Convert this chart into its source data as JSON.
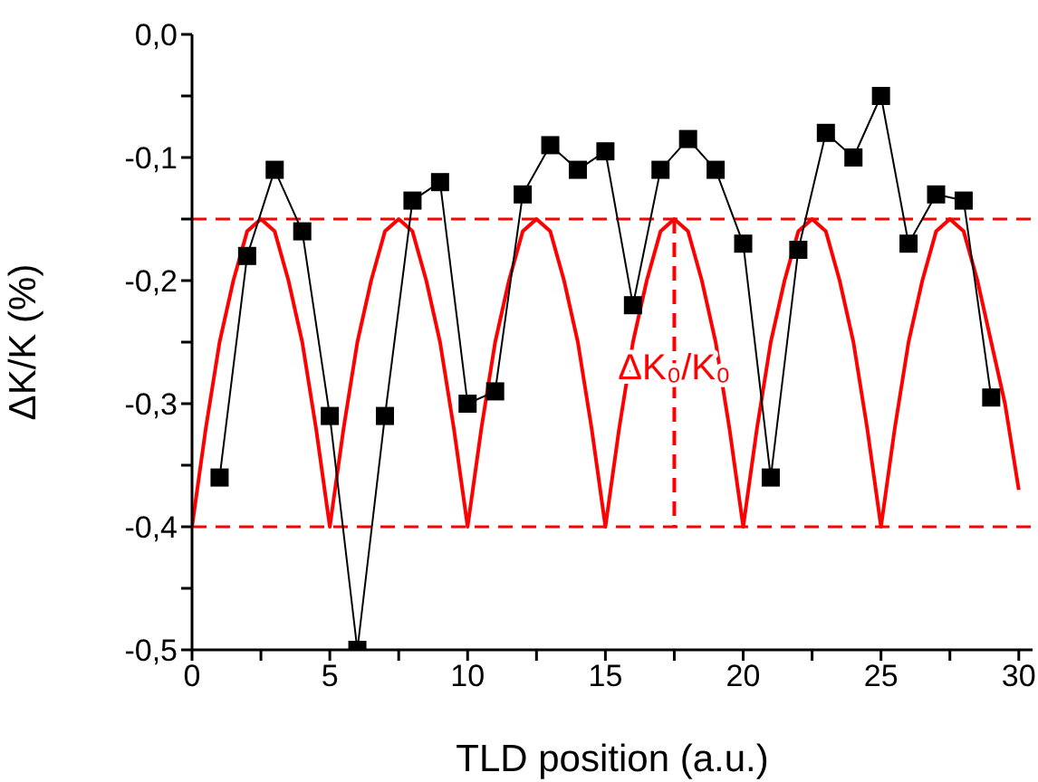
{
  "chart_data": {
    "type": "line",
    "xlabel": "TLD position (a.u.)",
    "ylabel": "ΔK/K (%)",
    "xlim": [
      0,
      30.5
    ],
    "ylim": [
      -0.5,
      0
    ],
    "xticks": [
      0,
      {
        "value": 2.5,
        "label": null
      },
      5,
      {
        "value": 7.5,
        "label": null
      },
      10,
      {
        "value": 12.5,
        "label": null
      },
      15,
      {
        "value": 17.5,
        "label": null
      },
      20,
      {
        "value": 22.5,
        "label": null
      },
      25,
      {
        "value": 27.5,
        "label": null
      },
      30
    ],
    "yticks": [
      {
        "value": 0,
        "label": "0,0"
      },
      {
        "value": -0.05,
        "label": null
      },
      {
        "value": -0.1,
        "label": "-0,1"
      },
      {
        "value": -0.15,
        "label": null
      },
      {
        "value": -0.2,
        "label": "-0,2"
      },
      {
        "value": -0.25,
        "label": null
      },
      {
        "value": -0.3,
        "label": "-0,3"
      },
      {
        "value": -0.35,
        "label": null
      },
      {
        "value": -0.4,
        "label": "-0,4"
      },
      {
        "value": -0.45,
        "label": null
      },
      {
        "value": -0.5,
        "label": "-0,5"
      }
    ],
    "series": [
      {
        "color": "#ff0000",
        "marker": "none",
        "line_style": "solid",
        "x": [
          0,
          0.5,
          1,
          1.5,
          2,
          2.5,
          3,
          3.5,
          4,
          4.5,
          5,
          5.5,
          6,
          6.5,
          7,
          7.5,
          8,
          8.5,
          9,
          9.5,
          10,
          10.5,
          11,
          11.5,
          12,
          12.5,
          13,
          13.5,
          14,
          14.5,
          15,
          15.5,
          16,
          16.5,
          17,
          17.5,
          18,
          18.5,
          19,
          19.5,
          20,
          20.5,
          21,
          21.5,
          22,
          22.5,
          23,
          23.5,
          24,
          24.5,
          25,
          25.5,
          26,
          26.5,
          27,
          27.5,
          28,
          28.5,
          29,
          29.5,
          30
        ],
        "values": [
          -0.4,
          -0.32,
          -0.25,
          -0.2,
          -0.16,
          -0.15,
          -0.16,
          -0.2,
          -0.25,
          -0.32,
          -0.4,
          -0.32,
          -0.25,
          -0.2,
          -0.16,
          -0.15,
          -0.16,
          -0.2,
          -0.25,
          -0.32,
          -0.4,
          -0.32,
          -0.25,
          -0.2,
          -0.16,
          -0.15,
          -0.16,
          -0.2,
          -0.25,
          -0.32,
          -0.4,
          -0.32,
          -0.25,
          -0.2,
          -0.16,
          -0.15,
          -0.16,
          -0.2,
          -0.25,
          -0.32,
          -0.4,
          -0.32,
          -0.25,
          -0.2,
          -0.16,
          -0.15,
          -0.16,
          -0.2,
          -0.25,
          -0.32,
          -0.4,
          -0.32,
          -0.25,
          -0.2,
          -0.16,
          -0.15,
          -0.16,
          -0.2,
          -0.25,
          -0.3,
          -0.37
        ]
      },
      {
        "color": "#ff0000",
        "marker": "none",
        "line_style": "dashed",
        "x": [
          17.5,
          17.5
        ],
        "values": [
          -0.15,
          -0.4
        ]
      },
      {
        "color": "#000000",
        "marker": "square",
        "line_style": "solid",
        "x": [
          1,
          2,
          3,
          4,
          5,
          6,
          7,
          8,
          9,
          10,
          11,
          12,
          13,
          14,
          15,
          16,
          17,
          18,
          19,
          20,
          21,
          22,
          23,
          24,
          25,
          26,
          27,
          28,
          29
        ],
        "values": [
          -0.36,
          -0.18,
          -0.11,
          -0.16,
          -0.31,
          -0.5,
          -0.31,
          -0.135,
          -0.12,
          -0.3,
          -0.29,
          -0.13,
          -0.09,
          -0.11,
          -0.095,
          -0.22,
          -0.11,
          -0.085,
          -0.11,
          -0.17,
          -0.36,
          -0.175,
          -0.08,
          -0.1,
          -0.05,
          -0.17,
          -0.13,
          -0.135,
          -0.295
        ]
      }
    ],
    "ref_lines": [
      {
        "axis": "y",
        "value": -0.15,
        "color": "#ff0000",
        "line_style": "dashed"
      },
      {
        "axis": "y",
        "value": -0.4,
        "color": "#ff0000",
        "line_style": "dashed"
      }
    ],
    "annotations": [
      {
        "text": "ΔK₀/K₀",
        "x": 17.5,
        "y": -0.28
      }
    ]
  }
}
